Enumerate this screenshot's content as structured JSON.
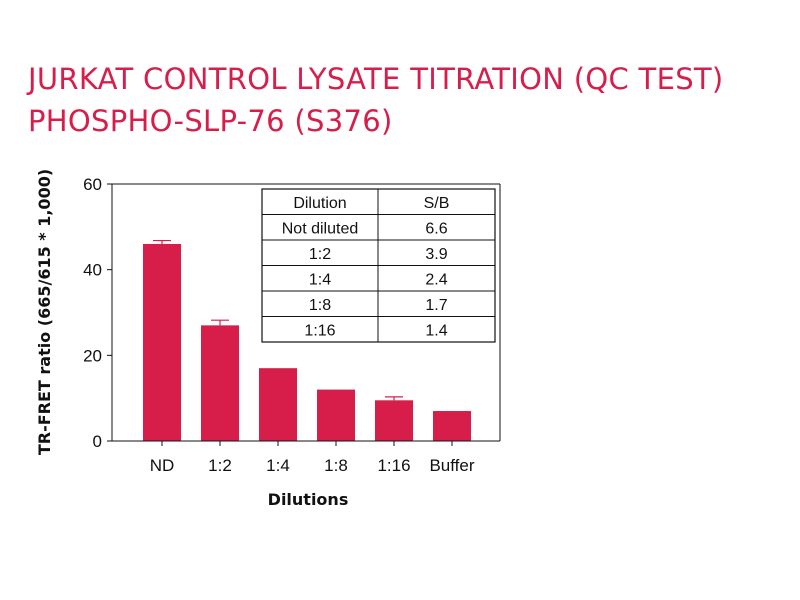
{
  "page": {
    "title_line1": "JURKAT CONTROL LYSATE TITRATION (QC TEST)",
    "title_line2": "PHOSPHO-SLP-76 (S376)"
  },
  "colors": {
    "bar": "#d71e4b",
    "title": "#d71e4b",
    "axis": "#111111"
  },
  "chart_data": {
    "type": "bar",
    "xlabel": "Dilutions",
    "ylabel": "TR-FRET ratio (665/615 * 1,000)",
    "categories": [
      "ND",
      "1:2",
      "1:4",
      "1:8",
      "1:16",
      "Buffer"
    ],
    "values": [
      46,
      27,
      17,
      12,
      9.5,
      7
    ],
    "error": [
      0.8,
      1.2,
      0,
      0,
      0.8,
      0
    ],
    "ylim": [
      0,
      60
    ],
    "yticks": [
      0,
      20,
      40,
      60
    ],
    "grid": false,
    "table": {
      "headers": [
        "Dilution",
        "S/B"
      ],
      "rows": [
        [
          "Not diluted",
          "6.6"
        ],
        [
          "1:2",
          "3.9"
        ],
        [
          "1:4",
          "2.4"
        ],
        [
          "1:8",
          "1.7"
        ],
        [
          "1:16",
          "1.4"
        ]
      ]
    }
  }
}
